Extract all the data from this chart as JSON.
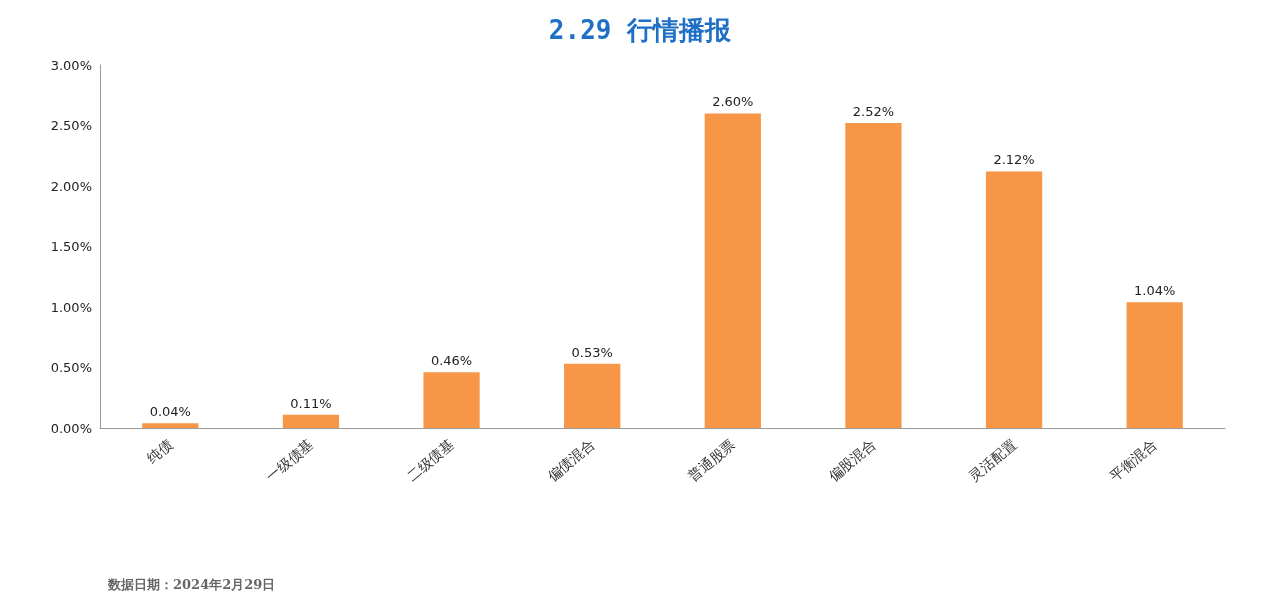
{
  "chart_data": {
    "type": "bar",
    "title": "2.29 行情播报",
    "categories": [
      "纯债",
      "一级债基",
      "二级债基",
      "偏债混合",
      "普通股票",
      "偏股混合",
      "灵活配置",
      "平衡混合"
    ],
    "values": [
      0.04,
      0.11,
      0.46,
      0.53,
      2.6,
      2.52,
      2.12,
      1.04
    ],
    "value_labels": [
      "0.04%",
      "0.11%",
      "0.46%",
      "0.53%",
      "2.60%",
      "2.52%",
      "2.12%",
      "1.04%"
    ],
    "color": "#f79646",
    "ylim": [
      0,
      3
    ],
    "yticks": [
      {
        "value": 0,
        "label": "0.00%"
      },
      {
        "value": 0.5,
        "label": "0.50%"
      },
      {
        "value": 1,
        "label": "1.00%"
      },
      {
        "value": 1.5,
        "label": "1.50%"
      },
      {
        "value": 2,
        "label": "2.00%"
      },
      {
        "value": 2.5,
        "label": "2.50%"
      },
      {
        "value": 3,
        "label": "3.00%"
      }
    ],
    "annotations": [
      "数据日期：2024年2月29日"
    ]
  }
}
